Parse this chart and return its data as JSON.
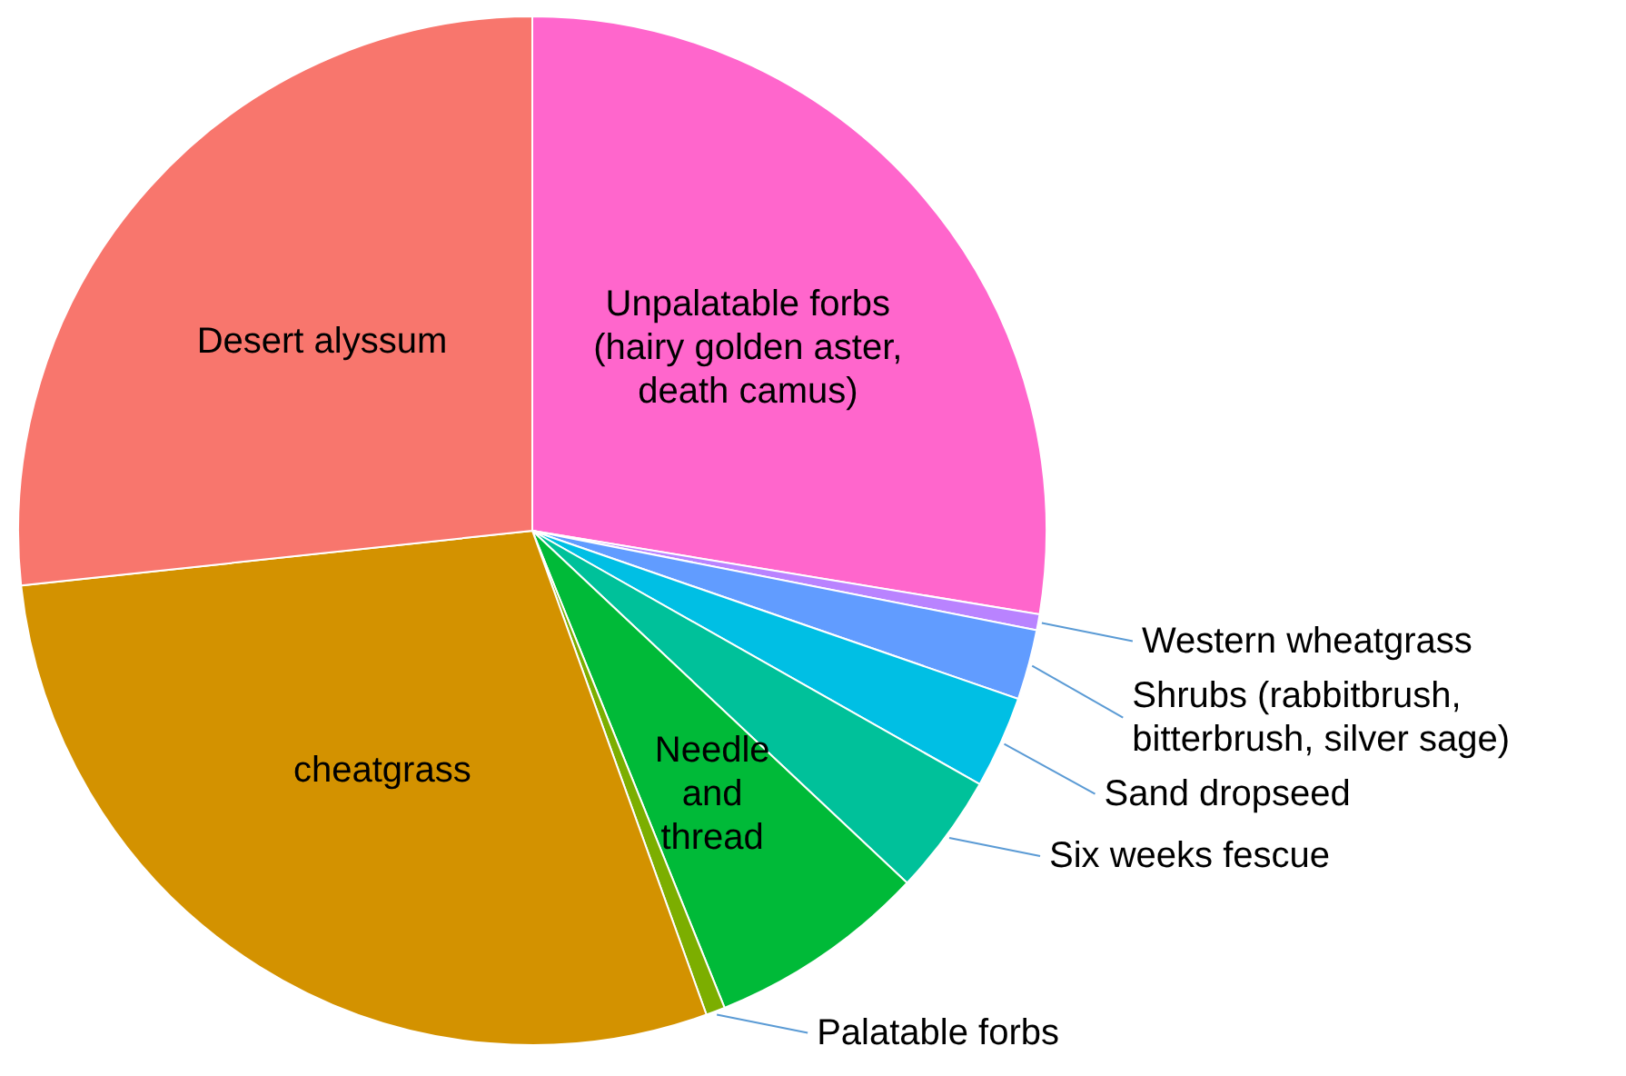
{
  "chart_data": {
    "type": "pie",
    "categories": [
      "Unpalatable forbs (hairy golden aster, death camus)",
      "Western wheatgrass",
      "Shrubs (rabbitbrush, bitterbrush, silver sage)",
      "Sand dropseed",
      "Six weeks fescue",
      "Needle and thread",
      "Palatable forbs",
      "cheatgrass",
      "Desert alyssum"
    ],
    "values": [
      27.6,
      0.5,
      2.2,
      2.9,
      3.8,
      6.9,
      0.6,
      28.8,
      26.7
    ],
    "colors": [
      "#ff66cc",
      "#b983ff",
      "#619cff",
      "#00bfe4",
      "#00c19a",
      "#00ba38",
      "#7cae00",
      "#d39200",
      "#f8766d"
    ]
  }
}
